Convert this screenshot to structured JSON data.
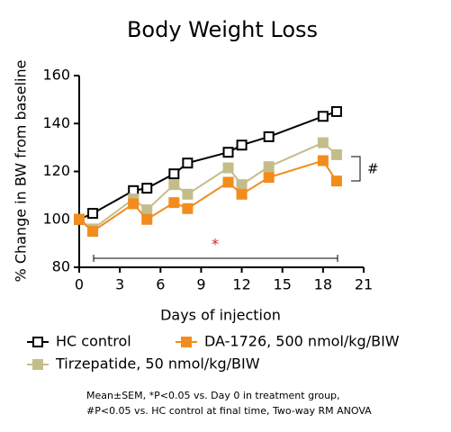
{
  "chart_data": {
    "type": "line",
    "title": "Body Weight Loss",
    "x_label": "Days of injection",
    "y_label": "% Change in BW from baseline",
    "x": [
      0,
      1,
      4,
      5,
      7,
      8,
      11,
      12,
      14,
      18,
      19
    ],
    "series": [
      {
        "name": "HC control",
        "color": "#000000",
        "marker_fill": "#ffffff",
        "values": [
          100,
          102.5,
          112,
          113,
          119,
          123.5,
          128,
          131,
          134.5,
          143,
          145
        ]
      },
      {
        "name": "DA-1726, 500 nmol/kg/BIW",
        "color": "#f28c1c",
        "marker_fill": "#f28c1c",
        "values": [
          100,
          95,
          106.5,
          100,
          107,
          104.5,
          115.5,
          110.5,
          117.5,
          124.5,
          116
        ]
      },
      {
        "name": "Tirzepatide, 50 nmol/kg/BIW",
        "color": "#c4bd8a",
        "marker_fill": "#c4bd8a",
        "values": [
          100,
          96,
          108.5,
          104,
          114.5,
          110.5,
          121.5,
          114.5,
          122,
          132,
          127
        ]
      }
    ],
    "xlim": [
      0,
      21
    ],
    "xticks": [
      0,
      3,
      6,
      9,
      12,
      15,
      18,
      21
    ],
    "ylim": [
      80,
      160
    ],
    "yticks": [
      80,
      100,
      120,
      140,
      160
    ],
    "annotations": {
      "star": "*",
      "hash": "#"
    },
    "footnote": [
      "Mean±SEM, *P<0.05 vs. Day 0 in treatment group,",
      "#P<0.05 vs. HC control at final time, Two-way RM ANOVA"
    ]
  }
}
